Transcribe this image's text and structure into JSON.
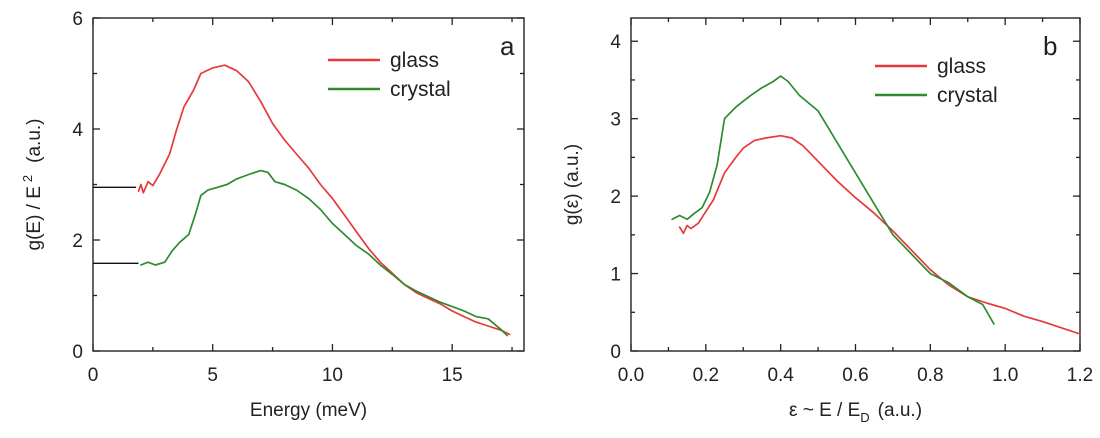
{
  "chart_data": [
    {
      "panel": "a",
      "type": "line",
      "xlabel": "Energy  (meV)",
      "ylabel_main": "g(E) / E",
      "ylabel_sup": "2",
      "ylabel_unit": "(a.u.)",
      "xlim": [
        0,
        18
      ],
      "ylim": [
        0,
        6
      ],
      "xticks": [
        0,
        5,
        10,
        15
      ],
      "xtick_labels": [
        "0",
        "5",
        "10",
        "15"
      ],
      "yticks": [
        0,
        2,
        4,
        6
      ],
      "ytick_labels": [
        "0",
        "2",
        "4",
        "6"
      ],
      "legend_position": "top-right",
      "reference_lines": [
        {
          "y": 2.95,
          "x_end": 1.8
        },
        {
          "y": 1.58,
          "x_end": 1.9
        }
      ],
      "series": [
        {
          "name": "glass",
          "color": "#e8383b",
          "points": [
            [
              1.9,
              2.88
            ],
            [
              2.0,
              3.0
            ],
            [
              2.1,
              2.85
            ],
            [
              2.3,
              3.05
            ],
            [
              2.5,
              2.98
            ],
            [
              2.8,
              3.2
            ],
            [
              3.2,
              3.55
            ],
            [
              3.5,
              4.0
            ],
            [
              3.8,
              4.4
            ],
            [
              4.2,
              4.7
            ],
            [
              4.5,
              5.0
            ],
            [
              5.0,
              5.1
            ],
            [
              5.5,
              5.15
            ],
            [
              6.0,
              5.05
            ],
            [
              6.5,
              4.85
            ],
            [
              7.0,
              4.5
            ],
            [
              7.5,
              4.1
            ],
            [
              8.0,
              3.8
            ],
            [
              8.5,
              3.55
            ],
            [
              9.0,
              3.3
            ],
            [
              9.5,
              3.0
            ],
            [
              10.0,
              2.75
            ],
            [
              10.5,
              2.45
            ],
            [
              11.0,
              2.15
            ],
            [
              11.5,
              1.85
            ],
            [
              12.0,
              1.6
            ],
            [
              12.5,
              1.4
            ],
            [
              13.0,
              1.2
            ],
            [
              13.5,
              1.05
            ],
            [
              14.0,
              0.95
            ],
            [
              14.5,
              0.85
            ],
            [
              15.0,
              0.72
            ],
            [
              15.5,
              0.62
            ],
            [
              16.0,
              0.52
            ],
            [
              16.5,
              0.45
            ],
            [
              17.0,
              0.38
            ],
            [
              17.4,
              0.3
            ]
          ]
        },
        {
          "name": "crystal",
          "color": "#2e8b2e",
          "points": [
            [
              2.0,
              1.55
            ],
            [
              2.3,
              1.6
            ],
            [
              2.6,
              1.55
            ],
            [
              3.0,
              1.6
            ],
            [
              3.3,
              1.8
            ],
            [
              3.6,
              1.95
            ],
            [
              4.0,
              2.1
            ],
            [
              4.3,
              2.5
            ],
            [
              4.5,
              2.8
            ],
            [
              4.8,
              2.9
            ],
            [
              5.2,
              2.95
            ],
            [
              5.6,
              3.0
            ],
            [
              6.0,
              3.1
            ],
            [
              6.5,
              3.18
            ],
            [
              7.0,
              3.25
            ],
            [
              7.3,
              3.22
            ],
            [
              7.6,
              3.05
            ],
            [
              8.0,
              3.0
            ],
            [
              8.5,
              2.9
            ],
            [
              9.0,
              2.75
            ],
            [
              9.5,
              2.55
            ],
            [
              10.0,
              2.3
            ],
            [
              10.5,
              2.1
            ],
            [
              11.0,
              1.9
            ],
            [
              11.5,
              1.75
            ],
            [
              12.0,
              1.55
            ],
            [
              12.5,
              1.38
            ],
            [
              13.0,
              1.2
            ],
            [
              13.5,
              1.08
            ],
            [
              14.0,
              0.98
            ],
            [
              14.5,
              0.88
            ],
            [
              15.0,
              0.8
            ],
            [
              15.5,
              0.72
            ],
            [
              16.0,
              0.62
            ],
            [
              16.5,
              0.58
            ],
            [
              17.0,
              0.4
            ],
            [
              17.3,
              0.28
            ]
          ]
        }
      ]
    },
    {
      "panel": "b",
      "type": "line",
      "xlabel_main": "ε ~ E / E",
      "xlabel_sub": "D",
      "xlabel_unit": "(a.u.)",
      "ylabel": "g(ε)  (a.u.)",
      "xlim": [
        0.0,
        1.2
      ],
      "ylim": [
        0,
        4.3
      ],
      "xticks": [
        0.0,
        0.2,
        0.4,
        0.6,
        0.8,
        1.0,
        1.2
      ],
      "xtick_labels": [
        "0.0",
        "0.2",
        "0.4",
        "0.6",
        "0.8",
        "1.0",
        "1.2"
      ],
      "yticks": [
        0,
        1,
        2,
        3,
        4
      ],
      "ytick_labels": [
        "0",
        "1",
        "2",
        "3",
        "4"
      ],
      "legend_position": "top-right",
      "series": [
        {
          "name": "glass",
          "color": "#e8383b",
          "points": [
            [
              0.13,
              1.6
            ],
            [
              0.14,
              1.52
            ],
            [
              0.15,
              1.62
            ],
            [
              0.16,
              1.58
            ],
            [
              0.18,
              1.65
            ],
            [
              0.2,
              1.8
            ],
            [
              0.22,
              1.95
            ],
            [
              0.25,
              2.3
            ],
            [
              0.28,
              2.5
            ],
            [
              0.3,
              2.62
            ],
            [
              0.33,
              2.72
            ],
            [
              0.36,
              2.75
            ],
            [
              0.4,
              2.78
            ],
            [
              0.43,
              2.75
            ],
            [
              0.46,
              2.65
            ],
            [
              0.5,
              2.45
            ],
            [
              0.55,
              2.2
            ],
            [
              0.6,
              1.98
            ],
            [
              0.65,
              1.78
            ],
            [
              0.7,
              1.55
            ],
            [
              0.75,
              1.3
            ],
            [
              0.8,
              1.05
            ],
            [
              0.85,
              0.85
            ],
            [
              0.9,
              0.7
            ],
            [
              0.95,
              0.62
            ],
            [
              1.0,
              0.55
            ],
            [
              1.05,
              0.45
            ],
            [
              1.1,
              0.38
            ],
            [
              1.15,
              0.3
            ],
            [
              1.2,
              0.22
            ]
          ]
        },
        {
          "name": "crystal",
          "color": "#2e8b2e",
          "points": [
            [
              0.11,
              1.7
            ],
            [
              0.13,
              1.75
            ],
            [
              0.15,
              1.7
            ],
            [
              0.17,
              1.78
            ],
            [
              0.19,
              1.85
            ],
            [
              0.21,
              2.05
            ],
            [
              0.23,
              2.4
            ],
            [
              0.25,
              3.0
            ],
            [
              0.28,
              3.15
            ],
            [
              0.32,
              3.3
            ],
            [
              0.35,
              3.4
            ],
            [
              0.38,
              3.48
            ],
            [
              0.4,
              3.55
            ],
            [
              0.42,
              3.48
            ],
            [
              0.45,
              3.3
            ],
            [
              0.5,
              3.1
            ],
            [
              0.55,
              2.7
            ],
            [
              0.6,
              2.3
            ],
            [
              0.65,
              1.9
            ],
            [
              0.7,
              1.5
            ],
            [
              0.75,
              1.25
            ],
            [
              0.8,
              1.0
            ],
            [
              0.85,
              0.88
            ],
            [
              0.9,
              0.7
            ],
            [
              0.94,
              0.6
            ],
            [
              0.97,
              0.35
            ]
          ]
        }
      ]
    }
  ]
}
